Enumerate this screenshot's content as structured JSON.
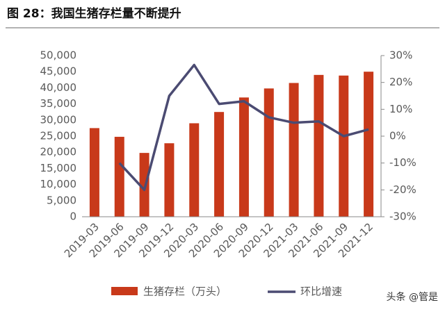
{
  "chart_data": {
    "type": "bar-line",
    "title": "图 28：我国生猪存栏量不断提升",
    "watermark": "头条 @管是",
    "categories": [
      "2019-03",
      "2019-06",
      "2019-09",
      "2019-12",
      "2020-03",
      "2020-06",
      "2020-09",
      "2020-12",
      "2021-03",
      "2021-06",
      "2021-09",
      "2021-12"
    ],
    "series": [
      {
        "name": "生猪存栏（万头）",
        "type": "bar",
        "color": "#c8391a",
        "values": [
          27500,
          24800,
          19800,
          22800,
          29000,
          32500,
          37000,
          39800,
          41500,
          44000,
          43800,
          45000
        ]
      },
      {
        "name": "环比增速",
        "type": "line",
        "axis": "y2",
        "color": "#4b4b72",
        "values": [
          null,
          -10,
          -20,
          15,
          26.5,
          12,
          13,
          7,
          5,
          5.5,
          0,
          2.5
        ]
      }
    ],
    "ylim": [
      0,
      50000
    ],
    "yticks": [
      0,
      {
        "value": 5000,
        "label": "5,000"
      },
      {
        "value": 10000,
        "label": "10,000"
      },
      {
        "value": 15000,
        "label": "15,000"
      },
      {
        "value": 20000,
        "label": "20,000"
      },
      {
        "value": 25000,
        "label": "25,000"
      },
      {
        "value": 30000,
        "label": "30,000"
      },
      {
        "value": 35000,
        "label": "35,000"
      },
      {
        "value": 40000,
        "label": "40,000"
      },
      {
        "value": 45000,
        "label": "45,000"
      },
      {
        "value": 50000,
        "label": "50,000"
      }
    ],
    "y2lim": [
      -30,
      30
    ],
    "y2ticks": [
      {
        "value": -30,
        "label": "-30%"
      },
      {
        "value": -20,
        "label": "-20%"
      },
      {
        "value": -10,
        "label": "-10%"
      },
      {
        "value": 0,
        "label": "0%"
      },
      {
        "value": 10,
        "label": "10%"
      },
      {
        "value": 20,
        "label": "20%"
      },
      {
        "value": 30,
        "label": "30%"
      }
    ]
  }
}
